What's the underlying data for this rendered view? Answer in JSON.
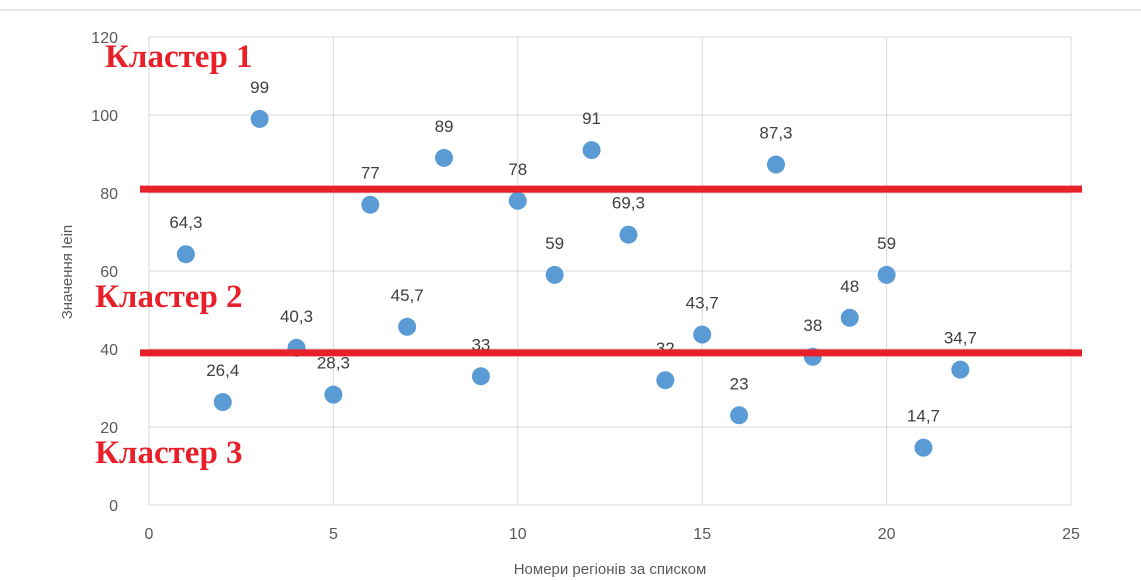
{
  "chart_data": {
    "type": "scatter",
    "xlabel": "Номери регіонів за списком",
    "ylabel": "Значення Iein",
    "xlim": [
      0,
      25
    ],
    "ylim": [
      0,
      120
    ],
    "x_ticks": [
      0,
      5,
      10,
      15,
      20,
      25
    ],
    "y_ticks": [
      0,
      20,
      40,
      60,
      80,
      100,
      120
    ],
    "grid": true,
    "point_color": "#5b9bd5",
    "points": [
      {
        "x": 1,
        "y": 64.3,
        "label": "64,3"
      },
      {
        "x": 2,
        "y": 26.4,
        "label": "26,4"
      },
      {
        "x": 3,
        "y": 99,
        "label": "99"
      },
      {
        "x": 4,
        "y": 40.3,
        "label": "40,3"
      },
      {
        "x": 5,
        "y": 28.3,
        "label": "28,3"
      },
      {
        "x": 6,
        "y": 77,
        "label": "77"
      },
      {
        "x": 7,
        "y": 45.7,
        "label": "45,7"
      },
      {
        "x": 8,
        "y": 89,
        "label": "89"
      },
      {
        "x": 9,
        "y": 33,
        "label": "33"
      },
      {
        "x": 10,
        "y": 78,
        "label": "78"
      },
      {
        "x": 11,
        "y": 59,
        "label": "59"
      },
      {
        "x": 12,
        "y": 91,
        "label": "91"
      },
      {
        "x": 13,
        "y": 69.3,
        "label": "69,3"
      },
      {
        "x": 14,
        "y": 32,
        "label": "32"
      },
      {
        "x": 15,
        "y": 43.7,
        "label": "43,7"
      },
      {
        "x": 16,
        "y": 23,
        "label": "23"
      },
      {
        "x": 17,
        "y": 87.3,
        "label": "87,3"
      },
      {
        "x": 18,
        "y": 38,
        "label": "38"
      },
      {
        "x": 19,
        "y": 48,
        "label": "48"
      },
      {
        "x": 20,
        "y": 59,
        "label": "59"
      },
      {
        "x": 21,
        "y": 14.7,
        "label": "14,7"
      },
      {
        "x": 22,
        "y": 34.7,
        "label": "34,7"
      }
    ],
    "divider_lines": [
      {
        "y": 81,
        "color": "#e8202a"
      },
      {
        "y": 39,
        "color": "#e8202a"
      }
    ],
    "annotations": [
      {
        "text": "Кластер 1",
        "color": "#e8202a"
      },
      {
        "text": "Кластер 2",
        "color": "#e8202a"
      },
      {
        "text": "Кластер 3",
        "color": "#e8202a"
      }
    ]
  }
}
